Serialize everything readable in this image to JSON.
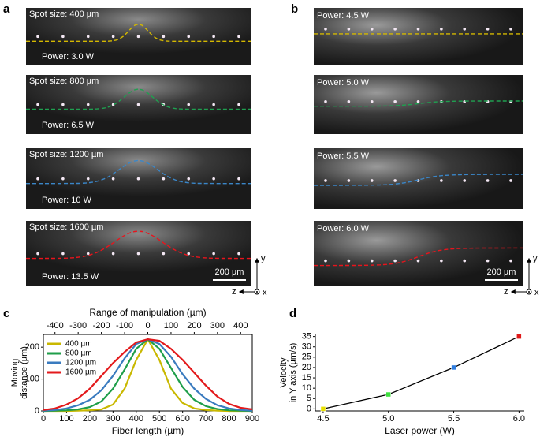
{
  "panels": {
    "a": {
      "label": "a",
      "photos": [
        {
          "spot_size": "Spot size: 400 µm",
          "power": "Power: 3.0 W"
        },
        {
          "spot_size": "Spot size: 800 µm",
          "power": "Power: 6.5 W"
        },
        {
          "spot_size": "Spot size: 1200 µm",
          "power": "Power: 10 W"
        },
        {
          "spot_size": "Spot size: 1600 µm",
          "power": "Power: 13.5 W"
        }
      ],
      "scale_bar": "200 µm",
      "axis_labels": {
        "y": "y",
        "z": "z",
        "x": "x"
      }
    },
    "b": {
      "label": "b",
      "photos": [
        {
          "power": "Power: 4.5 W"
        },
        {
          "power": "Power: 5.0 W"
        },
        {
          "power": "Power: 5.5 W"
        },
        {
          "power": "Power: 6.0 W"
        }
      ],
      "scale_bar": "200 µm",
      "axis_labels": {
        "y": "y",
        "z": "z",
        "x": "x"
      }
    }
  },
  "chart_data": [
    {
      "label": "c",
      "type": "line",
      "x_label": "Fiber length (µm)",
      "x2_label": "Range of manipulation (µm)",
      "y_label": [
        "Moving",
        "distance (µm)"
      ],
      "x": [
        0,
        50,
        100,
        150,
        200,
        250,
        300,
        350,
        400,
        450,
        500,
        550,
        600,
        650,
        700,
        750,
        800,
        850,
        900
      ],
      "series": [
        {
          "name": "400 µm",
          "color": "#c9b800",
          "values": [
            0,
            0,
            0,
            1,
            2,
            5,
            20,
            70,
            160,
            225,
            160,
            70,
            25,
            8,
            3,
            1,
            0,
            0,
            0
          ]
        },
        {
          "name": "800 µm",
          "color": "#1f9e4a",
          "values": [
            0,
            1,
            2,
            5,
            12,
            30,
            70,
            130,
            195,
            225,
            195,
            135,
            75,
            35,
            15,
            6,
            2,
            1,
            0
          ]
        },
        {
          "name": "1200 µm",
          "color": "#3a7bbf",
          "values": [
            1,
            3,
            8,
            18,
            35,
            65,
            110,
            165,
            210,
            225,
            210,
            170,
            115,
            70,
            38,
            18,
            8,
            3,
            1
          ]
        },
        {
          "name": "1600 µm",
          "color": "#e31a1c",
          "values": [
            3,
            8,
            20,
            40,
            70,
            110,
            150,
            185,
            215,
            225,
            220,
            195,
            160,
            120,
            80,
            45,
            22,
            10,
            5
          ]
        }
      ],
      "xlim": [
        0,
        900
      ],
      "xticks": [
        0,
        100,
        200,
        300,
        400,
        500,
        600,
        700,
        800,
        900
      ],
      "x2lim": [
        -450,
        450
      ],
      "x2ticks": [
        -400,
        -300,
        -200,
        -100,
        0,
        100,
        200,
        300,
        400
      ],
      "ylim": [
        0,
        240
      ],
      "yticks": [
        0,
        100,
        200
      ],
      "legend": "upper-left"
    },
    {
      "label": "d",
      "type": "line",
      "x_label": "Laser power (W)",
      "y_label": [
        "Velocity",
        "in Y axis (µm/s)"
      ],
      "x": [
        4.5,
        5.0,
        5.5,
        6.0
      ],
      "series": [
        {
          "color": "#000000",
          "values": [
            0,
            7,
            20,
            35
          ],
          "marker_colors": [
            "#e8e000",
            "#3ee03e",
            "#2e7de0",
            "#e01818"
          ]
        }
      ],
      "xlim": [
        4.44,
        6.04
      ],
      "xticks": [
        4.5,
        {
          "value": 5,
          "label": "5.0"
        },
        5.5,
        {
          "value": 6,
          "label": "6.0"
        }
      ],
      "ylim": [
        -1,
        36
      ],
      "yticks": [
        0,
        5,
        10,
        15,
        20,
        25,
        30,
        35
      ]
    }
  ]
}
